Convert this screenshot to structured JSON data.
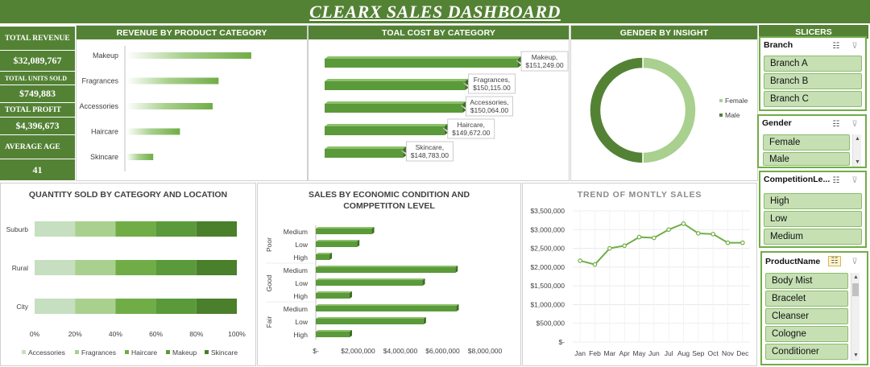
{
  "title": "CLEARX SALES DASHBOARD",
  "kpis": {
    "revenue_label": "TOTAL REVENUE",
    "revenue_value": "$32,089,767",
    "units_label": "TOTAL UNITS SOLD",
    "units_value": "$749,883",
    "profit_label": "TOTAL PROFIT",
    "profit_value": "$4,396,673",
    "age_label": "AVERAGE AGE",
    "age_value": "41"
  },
  "panels": {
    "revenue": "REVENUE BY PRODUCT CATEGORY",
    "cost": "TOAL COST BY CATEGORY",
    "gender": "GENDER BY INSIGHT",
    "slicers": "SLICERS",
    "quantity": "QUANTITY SOLD BY CATEGORY AND LOCATION",
    "sales_line1": "SALES BY ECONOMIC CONDITION AND",
    "sales_line2": "COMPPETITON LEVEL",
    "trend": "TREND OF MONTLY SALES"
  },
  "chart_data": [
    {
      "id": "revenue",
      "type": "bar",
      "orientation": "horizontal",
      "title": "REVENUE BY PRODUCT CATEGORY",
      "categories": [
        "Makeup",
        "Fragrances",
        "Accessories",
        "Haircare",
        "Skincare"
      ],
      "values": [
        6740000,
        6520000,
        6480000,
        6260000,
        6080000
      ],
      "axis_min": 5900000,
      "axis_max": 6930000,
      "color": "#70ad47"
    },
    {
      "id": "cost",
      "type": "bar",
      "orientation": "horizontal",
      "title": "TOAL COST BY CATEGORY",
      "categories": [
        "Makeup",
        "Fragrances",
        "Accessories",
        "Haircare",
        "Skincare"
      ],
      "values": [
        151249,
        150115,
        150064,
        149672,
        148783
      ],
      "data_labels": [
        "Makeup,\n$151,249.00",
        "Fragrances,\n$150,115.00",
        "Accessories,\n$150,064.00",
        "Haircare,\n$149,672.00",
        "Skincare,\n$148,783.00"
      ],
      "axis_min": 147100,
      "axis_max": 151249,
      "color": "#70ad47"
    },
    {
      "id": "gender",
      "type": "pie",
      "variant": "doughnut",
      "title": "GENDER BY INSIGHT",
      "labels": [
        "Female",
        "Male"
      ],
      "values": [
        50,
        50
      ],
      "colors": [
        "#a9d08e",
        "#548235"
      ],
      "legend": "right"
    },
    {
      "id": "quantity",
      "type": "bar",
      "orientation": "horizontal",
      "stacked": "percent",
      "title": "QUANTITY SOLD BY CATEGORY AND LOCATION",
      "categories": [
        "Suburb",
        "Rural",
        "City"
      ],
      "series": [
        {
          "name": "Accessories",
          "values": [
            20,
            20,
            20
          ],
          "color": "#c5dfc0"
        },
        {
          "name": "Fragrances",
          "values": [
            20,
            20,
            20
          ],
          "color": "#a9d08e"
        },
        {
          "name": "Haircare",
          "values": [
            20,
            20,
            20
          ],
          "color": "#70ad47"
        },
        {
          "name": "Makeup",
          "values": [
            20,
            20,
            20
          ],
          "color": "#5a9a3a"
        },
        {
          "name": "Skincare",
          "values": [
            20,
            20,
            20
          ],
          "color": "#4a7f2b"
        }
      ],
      "ticks": [
        "0%",
        "20%",
        "40%",
        "60%",
        "80%",
        "100%"
      ],
      "legend": "bottom"
    },
    {
      "id": "sales",
      "type": "bar",
      "orientation": "horizontal",
      "title": "SALES BY ECONOMIC CONDITION AND COMPPETITON LEVEL",
      "groups": [
        "Poor",
        "Good",
        "Fair"
      ],
      "categories": [
        "Medium",
        "Low",
        "High",
        "Medium",
        "Low",
        "High",
        "Medium",
        "Low",
        "High"
      ],
      "values": [
        2650000,
        1950000,
        650000,
        6600000,
        5050000,
        1600000,
        6650000,
        5100000,
        1600000
      ],
      "xlim": [
        0,
        8000000
      ],
      "ticks": [
        "$-",
        "$2,000,000",
        "$4,000,000",
        "$6,000,000",
        "$8,000,000"
      ],
      "color": "#70ad47"
    },
    {
      "id": "trend",
      "type": "line",
      "title": "TREND OF MONTLY SALES",
      "x": [
        "Jan",
        "Feb",
        "Mar",
        "Apr",
        "May",
        "Jun",
        "Jul",
        "Aug",
        "Sep",
        "Oct",
        "Nov",
        "Dec"
      ],
      "values": [
        2170000,
        2070000,
        2500000,
        2570000,
        2800000,
        2780000,
        3000000,
        3160000,
        2900000,
        2880000,
        2650000,
        2650000
      ],
      "ylim": [
        0,
        3500000
      ],
      "yticks": [
        "$-",
        "$500,000",
        "$1,000,000",
        "$1,500,000",
        "$2,000,000",
        "$2,500,000",
        "$3,000,000",
        "$3,500,000"
      ],
      "grid": true,
      "color": "#70ad47"
    }
  ],
  "slicers": {
    "branch": {
      "title": "Branch",
      "items": [
        "Branch A",
        "Branch B",
        "Branch C"
      ]
    },
    "gender": {
      "title": "Gender",
      "items": [
        "Female",
        "Male"
      ]
    },
    "competition": {
      "title": "CompetitionLe...",
      "items": [
        "High",
        "Low",
        "Medium"
      ]
    },
    "product": {
      "title": "ProductName",
      "items": [
        "Body Mist",
        "Bracelet",
        "Cleanser",
        "Cologne",
        "Conditioner"
      ]
    }
  },
  "icons": {
    "multiselect": "multi-select-icon",
    "clear": "clear-filter-icon"
  }
}
